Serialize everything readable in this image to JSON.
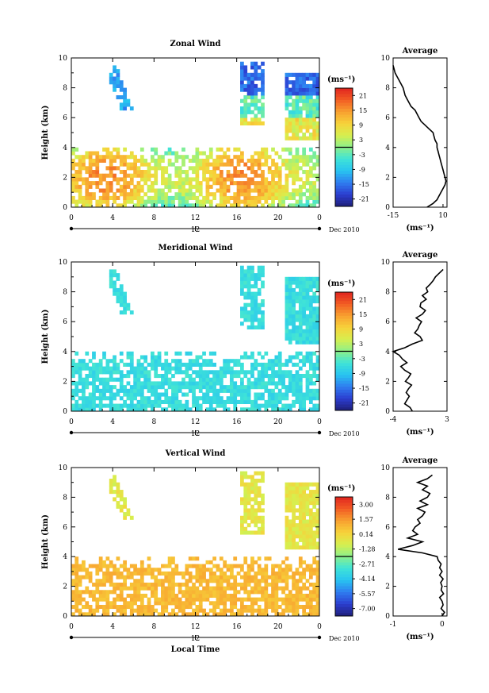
{
  "date_label": "Dec 2010",
  "xaxis_label": "Local Time",
  "chart_data": [
    {
      "type": "heatmap",
      "title": "Zonal Wind",
      "ylabel": "Height (km)",
      "xlim": [
        0,
        24
      ],
      "ylim": [
        0,
        10
      ],
      "xticks": [
        "0",
        "4",
        "8",
        "12",
        "16",
        "20",
        "0"
      ],
      "yticks": [
        "0",
        "2",
        "4",
        "6",
        "8",
        "10"
      ],
      "day_label": "12",
      "colorbar": {
        "unit": "(ms⁻¹)",
        "ticks": [
          "21",
          "15",
          "9",
          "3",
          "-3",
          "-9",
          "-15",
          "-21"
        ],
        "range": [
          -24,
          24
        ]
      },
      "profile": {
        "title": "Average",
        "xlabel": "(ms⁻¹)",
        "xticks": [
          "-15",
          "10"
        ],
        "xlim": [
          -15,
          12
        ],
        "heights": [
          0,
          0.25,
          0.5,
          0.75,
          1,
          1.25,
          1.5,
          1.75,
          2,
          2.25,
          2.5,
          2.75,
          3,
          3.25,
          3.5,
          3.75,
          4,
          4.25,
          4.5,
          4.75,
          5,
          5.25,
          5.5,
          5.75,
          6,
          6.25,
          6.5,
          6.75,
          7,
          7.25,
          7.5,
          7.75,
          8,
          8.25,
          8.5,
          8.75,
          9,
          9.25,
          9.5
        ],
        "values": [
          2,
          5,
          7,
          8,
          9,
          10,
          11,
          11.5,
          11,
          10.5,
          10,
          9.5,
          9,
          8.5,
          8,
          7.5,
          7,
          7,
          6,
          5.5,
          5,
          3,
          1,
          -1,
          -2,
          -3,
          -4,
          -6,
          -7,
          -8,
          -9,
          -9.5,
          -10,
          -11,
          -12,
          -13,
          -14,
          -14.5,
          -15
        ]
      }
    },
    {
      "type": "heatmap",
      "title": "Meridional Wind",
      "ylabel": "Height (km)",
      "xlim": [
        0,
        24
      ],
      "ylim": [
        0,
        10
      ],
      "xticks": [
        "0",
        "4",
        "8",
        "12",
        "16",
        "20",
        "0"
      ],
      "yticks": [
        "0",
        "2",
        "4",
        "6",
        "8",
        "10"
      ],
      "day_label": "12",
      "colorbar": {
        "unit": "(ms⁻¹)",
        "ticks": [
          "21",
          "15",
          "9",
          "3",
          "-3",
          "-9",
          "-15",
          "-21"
        ],
        "range": [
          -24,
          24
        ]
      },
      "profile": {
        "title": "Average",
        "xlabel": "(ms⁻¹)",
        "xticks": [
          "-4",
          "3"
        ],
        "xlim": [
          -4,
          3
        ],
        "heights": [
          0,
          0.25,
          0.5,
          0.75,
          1,
          1.25,
          1.5,
          1.75,
          2,
          2.25,
          2.5,
          2.75,
          3,
          3.25,
          3.5,
          3.75,
          4,
          4.25,
          4.5,
          4.75,
          5,
          5.25,
          5.5,
          5.75,
          6,
          6.25,
          6.5,
          6.75,
          7,
          7.25,
          7.5,
          7.75,
          8,
          8.25,
          8.5,
          8.75,
          9,
          9.25,
          9.5
        ],
        "values": [
          -1.5,
          -1.8,
          -2.5,
          -2.2,
          -1.9,
          -2.3,
          -2.0,
          -1.6,
          -2.4,
          -2.0,
          -1.7,
          -2.5,
          -3.0,
          -2.2,
          -2.8,
          -3.2,
          -4.0,
          -2.5,
          -1.5,
          -0.2,
          -0.5,
          -1.2,
          -0.8,
          -0.6,
          -0.3,
          -1.0,
          -0.2,
          0.2,
          -0.5,
          -0.4,
          0.3,
          -0.2,
          0.5,
          0.3,
          0.8,
          1.2,
          1.5,
          2.0,
          2.5
        ]
      }
    },
    {
      "type": "heatmap",
      "title": "Vertical Wind",
      "ylabel": "Height (km)",
      "xlim": [
        0,
        24
      ],
      "ylim": [
        0,
        10
      ],
      "xticks": [
        "0",
        "4",
        "8",
        "12",
        "16",
        "20",
        "0"
      ],
      "yticks": [
        "0",
        "2",
        "4",
        "6",
        "8",
        "10"
      ],
      "day_label": "12",
      "colorbar": {
        "unit": "(ms⁻¹)",
        "ticks": [
          "3.00",
          "1.57",
          "0.14",
          "-1.28",
          "-2.71",
          "-4.14",
          "-5.57",
          "-7.00"
        ],
        "range": [
          -8,
          4
        ]
      },
      "profile": {
        "title": "Average",
        "xlabel": "(ms⁻¹)",
        "xticks": [
          "-1",
          "0"
        ],
        "xlim": [
          -1,
          0.1
        ],
        "heights": [
          0,
          0.25,
          0.5,
          0.75,
          1,
          1.25,
          1.5,
          1.75,
          2,
          2.25,
          2.5,
          2.75,
          3,
          3.25,
          3.5,
          3.75,
          4,
          4.25,
          4.5,
          4.75,
          5,
          5.25,
          5.5,
          5.75,
          6,
          6.25,
          6.5,
          6.75,
          7,
          7.25,
          7.5,
          7.75,
          8,
          8.25,
          8.5,
          8.75,
          9,
          9.25,
          9.5
        ],
        "values": [
          0.0,
          0.05,
          -0.02,
          0.02,
          0.0,
          -0.05,
          0.03,
          -0.02,
          0.0,
          -0.03,
          0.02,
          -0.05,
          0.0,
          -0.05,
          -0.02,
          -0.08,
          -0.1,
          -0.4,
          -0.9,
          -0.6,
          -0.4,
          -0.7,
          -0.5,
          -0.6,
          -0.55,
          -0.45,
          -0.5,
          -0.4,
          -0.35,
          -0.5,
          -0.3,
          -0.45,
          -0.3,
          -0.25,
          -0.4,
          -0.3,
          -0.5,
          -0.3,
          -0.2
        ]
      }
    }
  ]
}
